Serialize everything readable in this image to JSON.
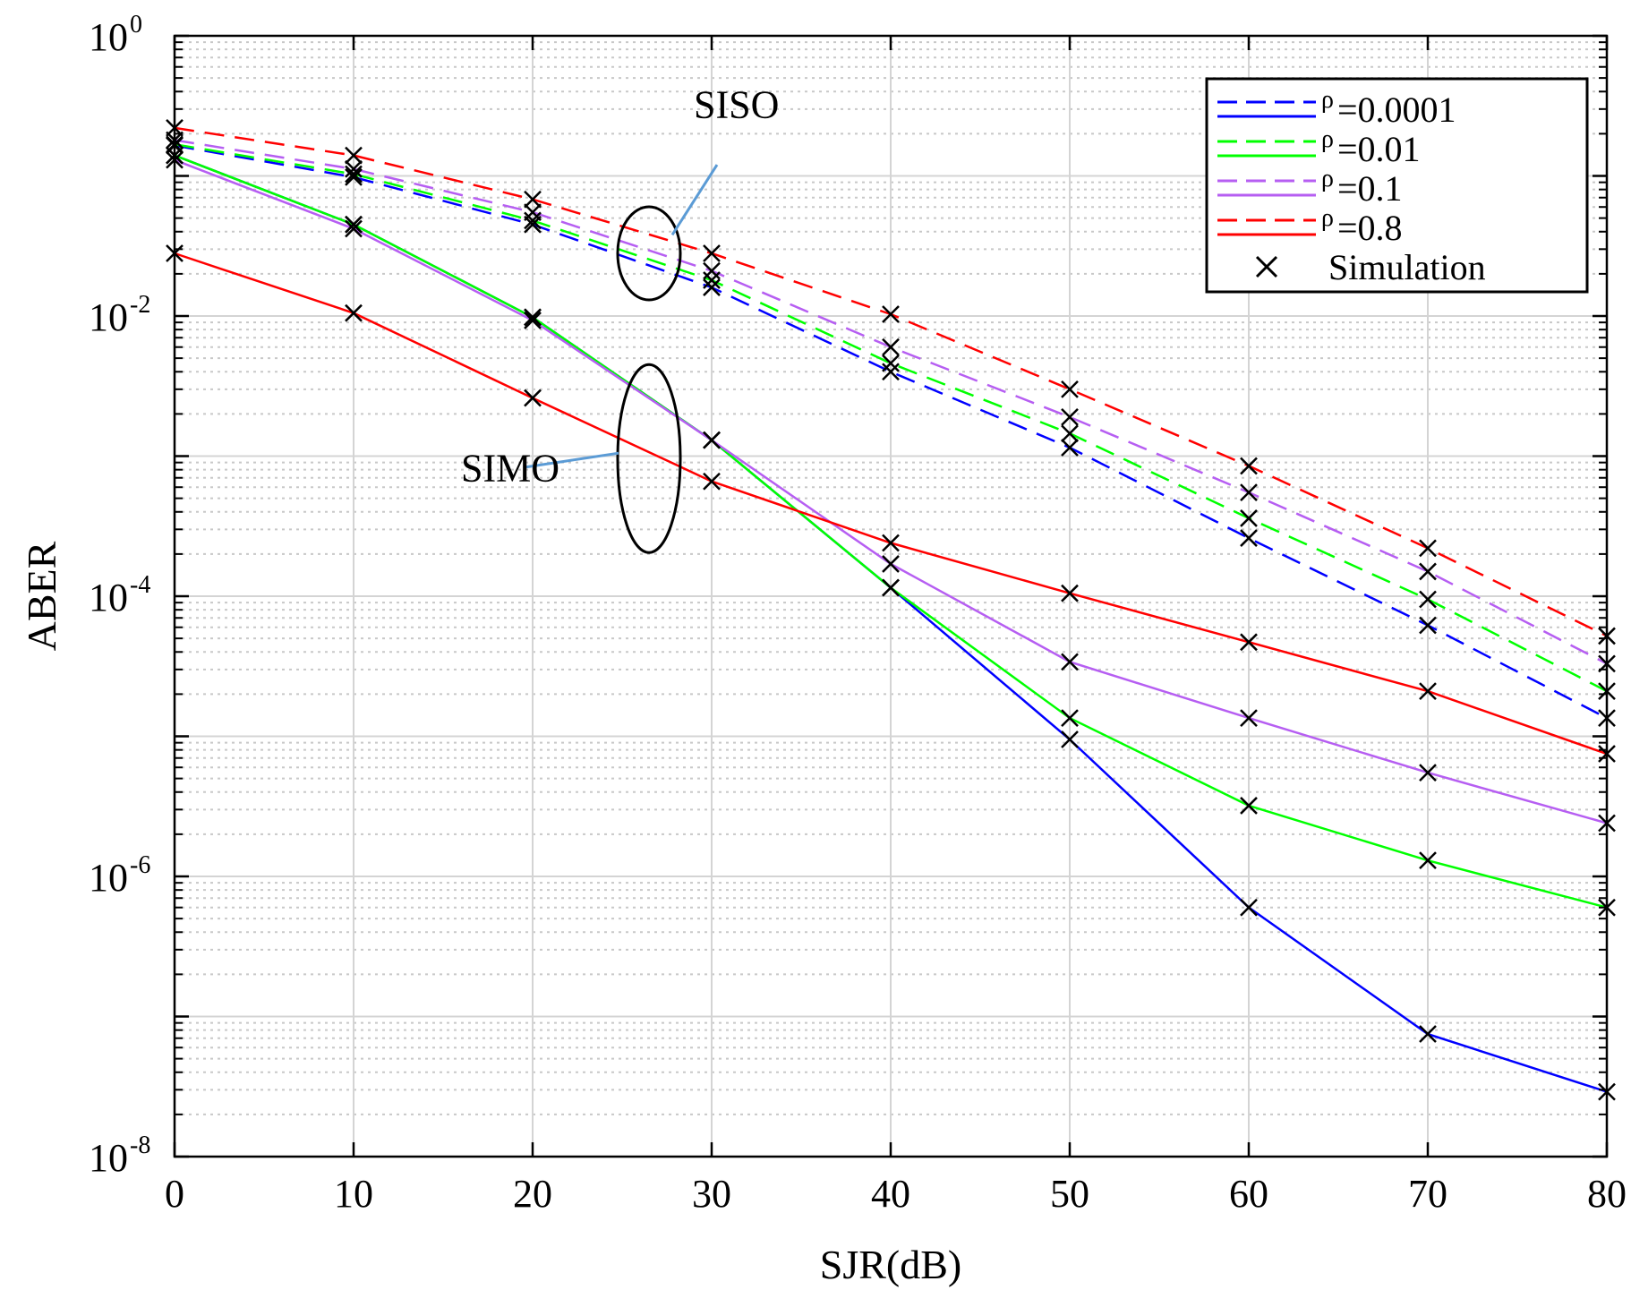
{
  "chart_data": {
    "type": "line",
    "title": "",
    "xlabel": "SJR(dB)",
    "ylabel": "ABER",
    "xlim": [
      0,
      80
    ],
    "ylim_log10": [
      -8,
      0
    ],
    "yscale": "log",
    "grid": true,
    "x": [
      0,
      10,
      20,
      30,
      40,
      50,
      60,
      70,
      80
    ],
    "x_tick_labels": [
      "0",
      "10",
      "20",
      "30",
      "40",
      "50",
      "60",
      "70",
      "80"
    ],
    "y_tick_labels": [
      {
        "base": "10",
        "exp": "0",
        "value": 1
      },
      {
        "base": "10",
        "exp": "-2",
        "value": 0.01
      },
      {
        "base": "10",
        "exp": "-4",
        "value": 0.0001
      },
      {
        "base": "10",
        "exp": "-6",
        "value": 1e-06
      },
      {
        "base": "10",
        "exp": "-8",
        "value": 1e-08
      }
    ],
    "series": [
      {
        "name": "SISO ρ=0.0001",
        "group": "SISO",
        "rho": "0.0001",
        "color": "#0000ff",
        "style": "dashed",
        "values": [
          0.165,
          0.098,
          0.045,
          0.016,
          0.004,
          0.00115,
          0.00026,
          6.2e-05,
          1.35e-05
        ]
      },
      {
        "name": "SISO ρ=0.01",
        "group": "SISO",
        "rho": "0.01",
        "color": "#00ff00",
        "style": "dashed",
        "values": [
          0.168,
          0.103,
          0.048,
          0.018,
          0.0046,
          0.00145,
          0.00036,
          9.5e-05,
          2.1e-05
        ]
      },
      {
        "name": "SISO ρ=0.1",
        "group": "SISO",
        "rho": "0.1",
        "color": "#b65ef2",
        "style": "dashed",
        "values": [
          0.18,
          0.112,
          0.055,
          0.021,
          0.006,
          0.0019,
          0.00055,
          0.00015,
          3.3e-05
        ]
      },
      {
        "name": "SISO ρ=0.8",
        "group": "SISO",
        "rho": "0.8",
        "color": "#ff0000",
        "style": "dashed",
        "values": [
          0.22,
          0.14,
          0.068,
          0.028,
          0.0103,
          0.003,
          0.00085,
          0.00022,
          5.2e-05
        ]
      },
      {
        "name": "SIMO ρ=0.0001",
        "group": "SIMO",
        "rho": "0.0001",
        "color": "#0000ff",
        "style": "solid",
        "values": [
          0.14,
          0.045,
          0.0098,
          0.0013,
          0.000115,
          9.5e-06,
          6e-07,
          7.5e-08,
          2.9e-08
        ]
      },
      {
        "name": "SIMO ρ=0.01",
        "group": "SIMO",
        "rho": "0.01",
        "color": "#00ff00",
        "style": "solid",
        "values": [
          0.14,
          0.045,
          0.0098,
          0.0013,
          0.000115,
          1.35e-05,
          3.2e-06,
          1.3e-06,
          6e-07
        ]
      },
      {
        "name": "SIMO ρ=0.1",
        "group": "SIMO",
        "rho": "0.1",
        "color": "#b65ef2",
        "style": "solid",
        "values": [
          0.13,
          0.042,
          0.0093,
          0.0013,
          0.00017,
          3.4e-05,
          1.35e-05,
          5.5e-06,
          2.4e-06
        ]
      },
      {
        "name": "SIMO ρ=0.8",
        "group": "SIMO",
        "rho": "0.8",
        "color": "#ff0000",
        "style": "solid",
        "values": [
          0.028,
          0.0105,
          0.0026,
          0.00066,
          0.00024,
          0.000105,
          4.7e-05,
          2.1e-05,
          7.5e-06
        ]
      }
    ],
    "simulation_marker": "x",
    "legend": {
      "placement": "top-right",
      "entries": [
        {
          "prefix": "ρ",
          "label": "=0.0001",
          "color": "#0000ff"
        },
        {
          "prefix": "ρ",
          "label": "=0.01",
          "color": "#00ff00"
        },
        {
          "prefix": "ρ",
          "label": "=0.1",
          "color": "#b65ef2"
        },
        {
          "prefix": "ρ",
          "label": "=0.8",
          "color": "#ff0000"
        }
      ],
      "marker_entry": "Simulation"
    },
    "annotations": [
      {
        "text": "SISO",
        "ellipse_center": [
          26.5,
          0.028
        ],
        "label_at": [
          29,
          0.26
        ],
        "pointer_from": [
          30.3,
          0.12
        ],
        "pointer_to": [
          27.8,
          0.038
        ]
      },
      {
        "text": "SIMO",
        "ellipse_center": [
          26.5,
          0.00096
        ],
        "label_at": [
          16,
          0.00066
        ],
        "pointer_from": [
          19.5,
          0.00083
        ],
        "pointer_to": [
          24.8,
          0.00105
        ]
      }
    ],
    "annotation_color": "#5b9bd5"
  }
}
